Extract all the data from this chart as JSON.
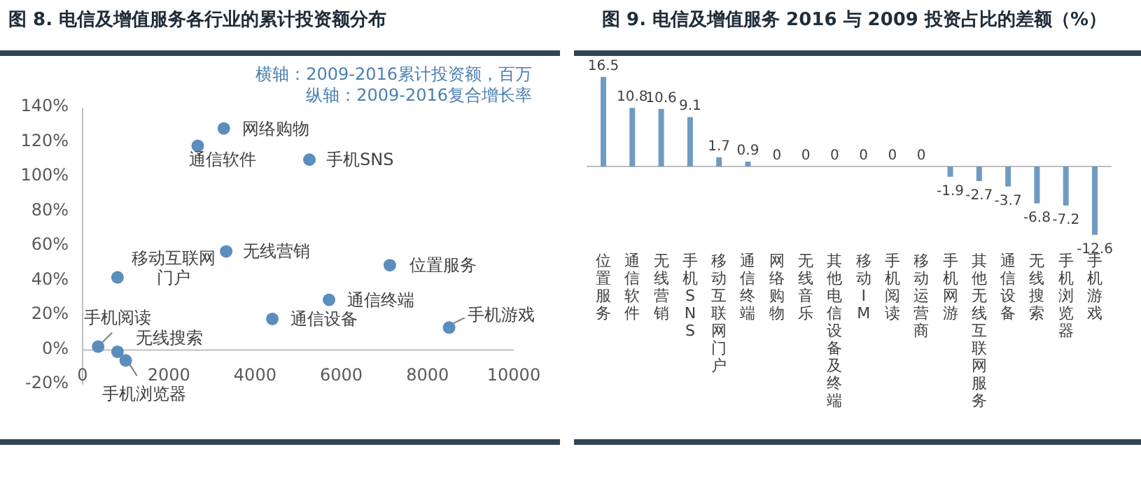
{
  "chart_data": [
    {
      "type": "scatter",
      "title": "图 8. 电信及增值服务各行业的累计投资额分布",
      "color": "#5b8dbd",
      "marker": "circle",
      "x": [
        3275,
        2670,
        5260,
        3330,
        810,
        7125,
        5715,
        4400,
        8500,
        360,
        810,
        1000
      ],
      "values": [
        128,
        118,
        110,
        57,
        42,
        49,
        29,
        18,
        13,
        2,
        -1,
        -6
      ],
      "xlim": [
        0,
        10000
      ],
      "xticks": [
        0,
        2000,
        4000,
        6000,
        8000,
        10000
      ],
      "ylim": [
        -20,
        140
      ],
      "yticks": [
        {
          "value": -20,
          "label": "-20%"
        },
        {
          "value": 0,
          "label": "0%"
        },
        {
          "value": 20,
          "label": "20%"
        },
        {
          "value": 40,
          "label": "40%"
        },
        {
          "value": 60,
          "label": "60%"
        },
        {
          "value": 80,
          "label": "80%"
        },
        {
          "value": 100,
          "label": "100%"
        },
        {
          "value": 120,
          "label": "120%"
        },
        {
          "value": 140,
          "label": "140%"
        }
      ],
      "annotations": [
        "横轴：2009-2016累计投资额，百万",
        "纵轴：2009-2016复合增长率",
        {
          "text": "网络购物",
          "x": 3275,
          "y": 128
        },
        {
          "text": "通信软件",
          "x": 2670,
          "y": 118
        },
        {
          "text": "手机SNS",
          "x": 5260,
          "y": 110
        },
        {
          "text": "无线营销",
          "x": 3330,
          "y": 57
        },
        {
          "text": "移动互联网门户",
          "x": 810,
          "y": 42
        },
        {
          "text": "位置服务",
          "x": 7125,
          "y": 49
        },
        {
          "text": "通信终端",
          "x": 5715,
          "y": 29
        },
        {
          "text": "通信设备",
          "x": 4400,
          "y": 18
        },
        {
          "text": "手机游戏",
          "x": 8500,
          "y": 13
        },
        {
          "text": "手机阅读",
          "x": 360,
          "y": 2
        },
        {
          "text": "无线搜索",
          "x": 810,
          "y": -1
        },
        {
          "text": "手机浏览器",
          "x": 1000,
          "y": -6
        }
      ]
    },
    {
      "type": "bar",
      "title": "图 9. 电信及增值服务 2016 与 2009 投资占比的差额（%）",
      "color": "#6f9bc2",
      "data_labels": true,
      "categories": [
        "位置服务",
        "通信软件",
        "无线营销",
        "手机SNS",
        "移动互联网门户",
        "通信终端",
        "网络购物",
        "无线音乐",
        "其他电信设备及终端",
        "移动IM",
        "手机阅读",
        "移动运营商",
        "手机网游",
        "其他无线互联网服务",
        "通信设备",
        "无线搜索",
        "手机浏览器",
        "手机游戏"
      ],
      "values": [
        16.5,
        10.8,
        10.6,
        9.1,
        1.7,
        0.9,
        0,
        0,
        0,
        0,
        0,
        0,
        -1.9,
        -2.7,
        -3.7,
        -6.8,
        -7.2,
        -12.6
      ]
    }
  ]
}
